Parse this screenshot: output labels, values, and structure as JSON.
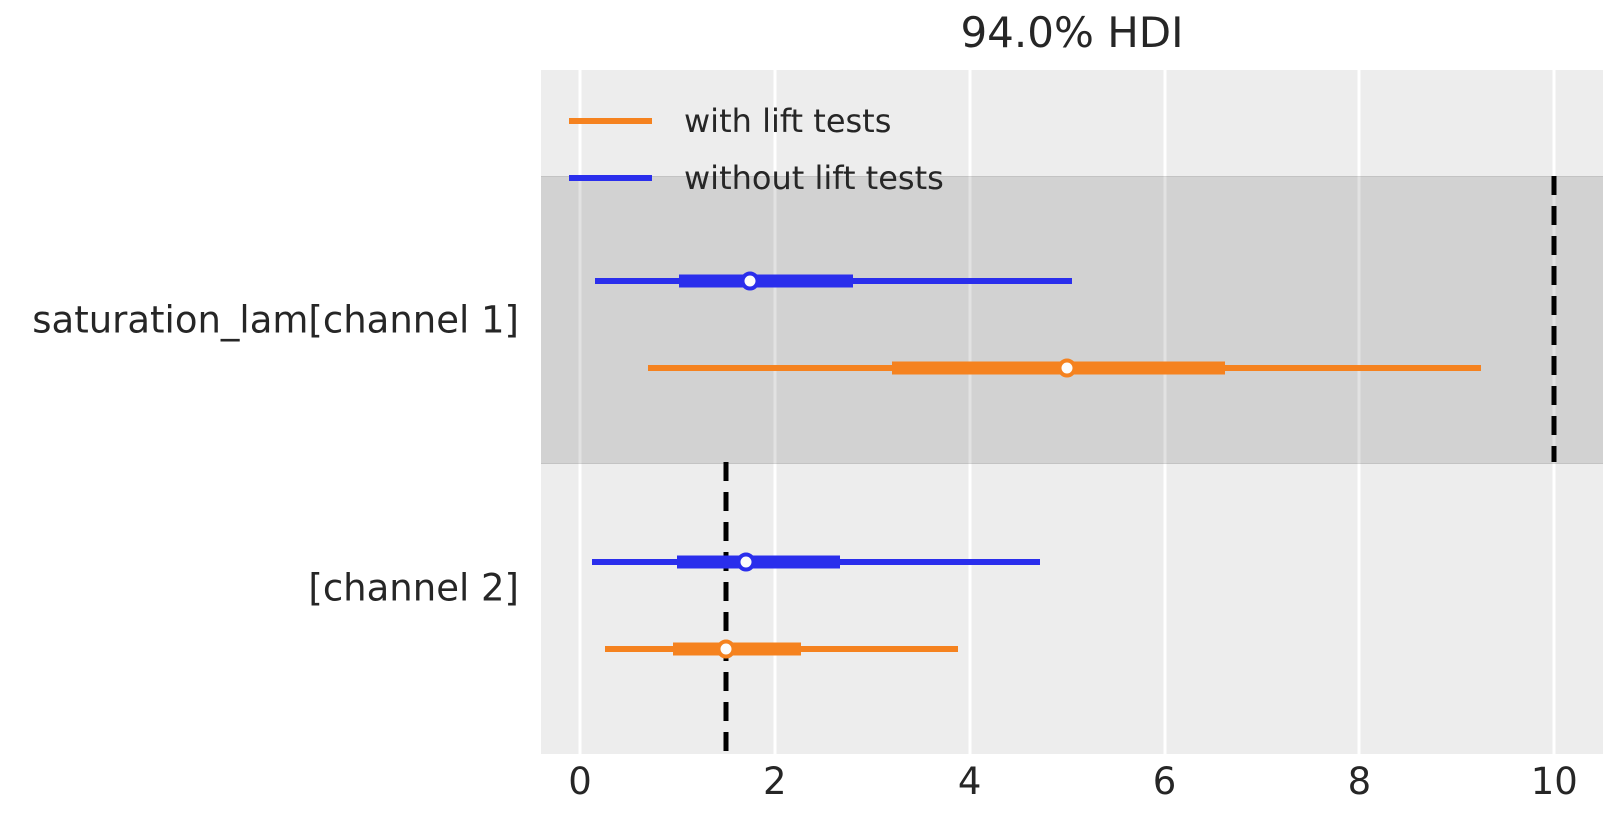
{
  "title": "94.0% HDI",
  "text_color": "#262626",
  "plot_background": "#ededed",
  "gridline_color": "#ffffff",
  "legend": {
    "items": [
      {
        "label": "with lift tests",
        "color": "#f5821f"
      },
      {
        "label": "without lift tests",
        "color": "#2a2eec"
      }
    ]
  },
  "chart_data": {
    "type": "forest",
    "title": "94.0% HDI",
    "xlabel": "",
    "ylabel": "",
    "xlim": [
      -0.4,
      10.5
    ],
    "xticks": [
      0,
      2,
      4,
      6,
      8,
      10
    ],
    "grid": true,
    "legend_position": "upper-left",
    "band": {
      "top_frac": 0.155,
      "bottom_frac": 0.573
    },
    "rows": [
      {
        "parameter": "saturation_lam[channel 1]",
        "label_y_frac": 0.365,
        "shaded": true,
        "reference_value": 10.0,
        "ref_span_frac": [
          0.155,
          0.573
        ],
        "series": [
          {
            "name": "without lift tests",
            "color": "#2a2eec",
            "hdi": [
              0.15,
              5.05
            ],
            "quartile": [
              1.02,
              2.8
            ],
            "median": 1.75,
            "y_frac": 0.308
          },
          {
            "name": "with lift tests",
            "color": "#f5821f",
            "hdi": [
              0.7,
              9.25
            ],
            "quartile": [
              3.2,
              6.62
            ],
            "median": 5.0,
            "y_frac": 0.436
          }
        ]
      },
      {
        "parameter": "[channel 2]",
        "label_y_frac": 0.757,
        "shaded": false,
        "reference_value": 1.5,
        "ref_span_frac": [
          0.573,
          1.0
        ],
        "series": [
          {
            "name": "without lift tests",
            "color": "#2a2eec",
            "hdi": [
              0.12,
              4.72
            ],
            "quartile": [
              1.0,
              2.67
            ],
            "median": 1.7,
            "y_frac": 0.719
          },
          {
            "name": "with lift tests",
            "color": "#f5821f",
            "hdi": [
              0.26,
              3.88
            ],
            "quartile": [
              0.95,
              2.27
            ],
            "median": 1.5,
            "y_frac": 0.846
          }
        ]
      }
    ]
  }
}
